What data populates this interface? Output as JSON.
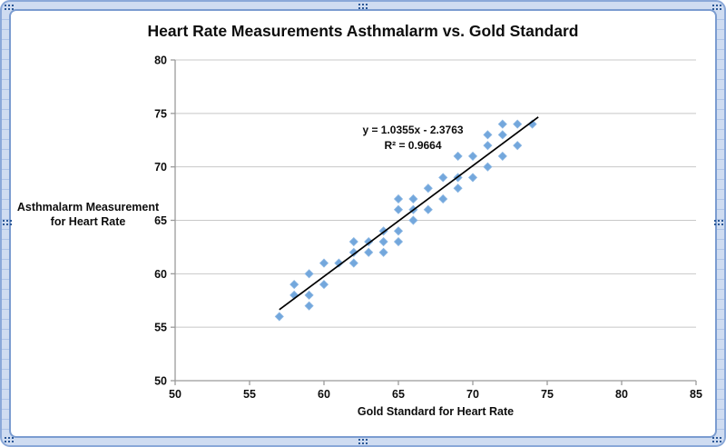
{
  "chart_data": {
    "type": "scatter",
    "title": "Heart Rate Measurements Asthmalarm vs. Gold Standard",
    "xlabel": "Gold Standard for Heart Rate",
    "ylabel": "Asthmalarm Measurement for Heart Rate",
    "ylabel_lines": [
      "Asthmalarm Measurement",
      "for Heart Rate"
    ],
    "xlim": [
      50,
      85
    ],
    "ylim": [
      50,
      80
    ],
    "x_ticks": [
      50,
      55,
      60,
      65,
      70,
      75,
      80,
      85
    ],
    "y_ticks": [
      50,
      55,
      60,
      65,
      70,
      75,
      80
    ],
    "grid": "horizontal",
    "legend": "none",
    "points": [
      [
        57,
        56
      ],
      [
        58,
        58
      ],
      [
        58,
        59
      ],
      [
        59,
        57
      ],
      [
        59,
        58
      ],
      [
        59,
        60
      ],
      [
        60,
        59
      ],
      [
        60,
        61
      ],
      [
        61,
        61
      ],
      [
        62,
        61
      ],
      [
        62,
        62
      ],
      [
        62,
        63
      ],
      [
        63,
        62
      ],
      [
        63,
        63
      ],
      [
        64,
        62
      ],
      [
        64,
        63
      ],
      [
        64,
        64
      ],
      [
        65,
        63
      ],
      [
        65,
        64
      ],
      [
        65,
        66
      ],
      [
        65,
        67
      ],
      [
        66,
        65
      ],
      [
        66,
        66
      ],
      [
        66,
        67
      ],
      [
        67,
        66
      ],
      [
        67,
        68
      ],
      [
        68,
        67
      ],
      [
        68,
        69
      ],
      [
        69,
        68
      ],
      [
        69,
        69
      ],
      [
        69,
        71
      ],
      [
        70,
        69
      ],
      [
        70,
        71
      ],
      [
        71,
        70
      ],
      [
        71,
        72
      ],
      [
        71,
        73
      ],
      [
        72,
        71
      ],
      [
        72,
        73
      ],
      [
        72,
        74
      ],
      [
        73,
        72
      ],
      [
        73,
        74
      ],
      [
        74,
        74
      ]
    ],
    "trendline": {
      "slope": 1.0355,
      "intercept": -2.3763,
      "x_start": 57,
      "x_end": 74.4,
      "equation_label": "y = 1.0355x - 2.3763",
      "r_squared_label": "R² = 0.9664"
    },
    "marker": {
      "shape": "diamond",
      "size": 9
    },
    "colors": {
      "marker_fill": "#73a7dc",
      "marker_edge": "#8ab6e3",
      "trendline": "#000000",
      "gridline": "#c8c8c8",
      "axis_line": "#9a9a9a",
      "text": "#0d0d0d",
      "frame_accent": "#8aa8d8",
      "frame_fill": "#cfdcf1",
      "grip_dot": "#2a5796"
    }
  }
}
